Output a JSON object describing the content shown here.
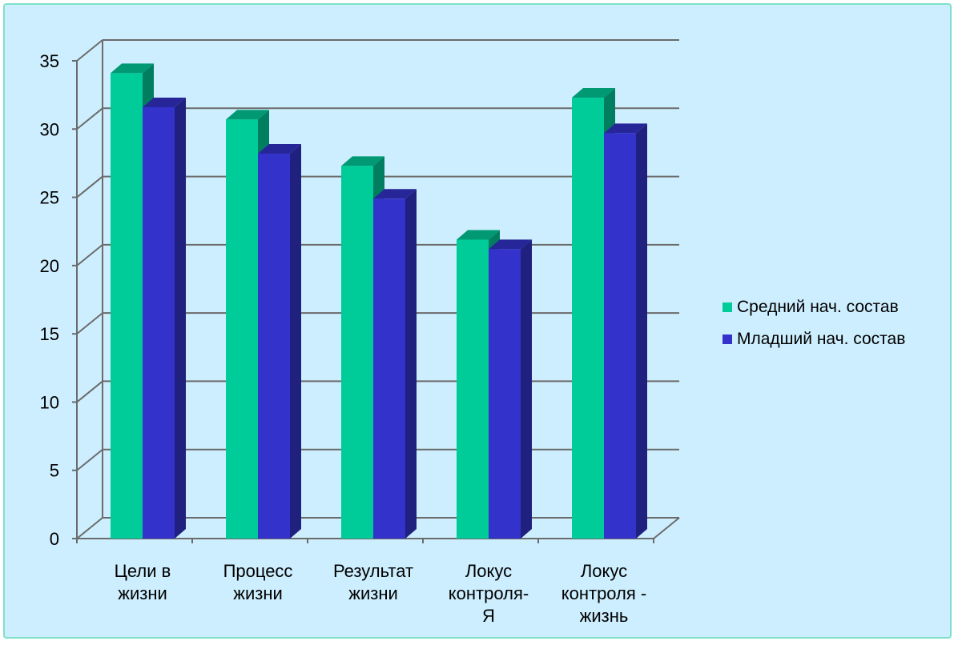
{
  "chart_data": {
    "type": "bar",
    "style": "3d-clustered-column",
    "categories": [
      [
        "Цели в",
        "жизни"
      ],
      [
        "Процесс",
        "жизни"
      ],
      [
        "Результат",
        "жизни"
      ],
      [
        "Локус",
        "контроля-",
        "Я"
      ],
      [
        "Локус",
        "контроля -",
        "жизнь"
      ]
    ],
    "series": [
      {
        "name": "Средний нач. состав",
        "values": [
          34.1,
          30.7,
          27.3,
          21.9,
          32.3
        ],
        "color": "#00cc99"
      },
      {
        "name": "Младший нач. состав",
        "values": [
          31.6,
          28.2,
          24.9,
          21.2,
          29.7
        ],
        "color": "#3333cc"
      }
    ],
    "ylim": [
      0,
      35
    ],
    "yticks": [
      "0",
      "5",
      "10",
      "15",
      "20",
      "25",
      "30",
      "35"
    ],
    "grid": true,
    "legend_position": "right"
  }
}
